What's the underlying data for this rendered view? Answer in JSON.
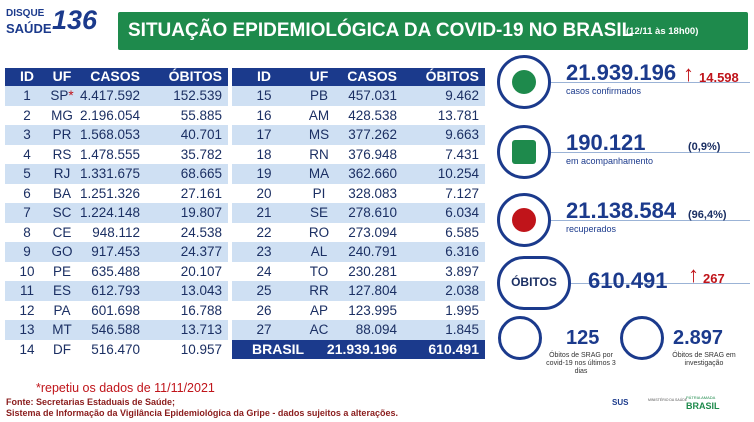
{
  "header": {
    "logo_line1": "DISQUE",
    "logo_line2": "SAÚDE",
    "logo_number": "136",
    "title": "SITUAÇÃO EPIDEMIOLÓGICA DA COVID-19 NO BRASIL",
    "timestamp": "(12/11 às 18h00)"
  },
  "table": {
    "columns": [
      "ID",
      "UF",
      "CASOS",
      "ÓBITOS"
    ],
    "rows": [
      [
        "1",
        "SP",
        "4.417.592",
        "152.539"
      ],
      [
        "2",
        "MG",
        "2.196.054",
        "55.885"
      ],
      [
        "3",
        "PR",
        "1.568.053",
        "40.701"
      ],
      [
        "4",
        "RS",
        "1.478.555",
        "35.782"
      ],
      [
        "5",
        "RJ",
        "1.331.675",
        "68.665"
      ],
      [
        "6",
        "BA",
        "1.251.326",
        "27.161"
      ],
      [
        "7",
        "SC",
        "1.224.148",
        "19.807"
      ],
      [
        "8",
        "CE",
        "948.112",
        "24.538"
      ],
      [
        "9",
        "GO",
        "917.453",
        "24.377"
      ],
      [
        "10",
        "PE",
        "635.488",
        "20.107"
      ],
      [
        "11",
        "ES",
        "612.793",
        "13.043"
      ],
      [
        "12",
        "PA",
        "601.698",
        "16.788"
      ],
      [
        "13",
        "MT",
        "546.588",
        "13.713"
      ],
      [
        "14",
        "DF",
        "516.470",
        "10.957"
      ],
      [
        "15",
        "PB",
        "457.031",
        "9.462"
      ],
      [
        "16",
        "AM",
        "428.538",
        "13.781"
      ],
      [
        "17",
        "MS",
        "377.262",
        "9.663"
      ],
      [
        "18",
        "RN",
        "376.948",
        "7.431"
      ],
      [
        "19",
        "MA",
        "362.660",
        "10.254"
      ],
      [
        "20",
        "PI",
        "328.083",
        "7.127"
      ],
      [
        "21",
        "SE",
        "278.610",
        "6.034"
      ],
      [
        "22",
        "RO",
        "273.094",
        "6.585"
      ],
      [
        "23",
        "AL",
        "240.791",
        "6.316"
      ],
      [
        "24",
        "TO",
        "230.281",
        "3.897"
      ],
      [
        "25",
        "RR",
        "127.804",
        "2.038"
      ],
      [
        "26",
        "AP",
        "123.995",
        "1.995"
      ],
      [
        "27",
        "AC",
        "88.094",
        "1.845"
      ]
    ],
    "note_mark": "*",
    "total": {
      "label": "BRASIL",
      "cases": "21.939.196",
      "deaths": "610.491"
    }
  },
  "summary": {
    "cards": [
      {
        "value": "21.939.196",
        "label": "casos confirmados",
        "delta": "14.598"
      },
      {
        "value": "190.121",
        "label": "em acompanhamento",
        "share": "(0,9%)"
      },
      {
        "value": "21.138.584",
        "label": "recuperados",
        "share": "(96,4%)"
      },
      {
        "title": "ÓBITOS",
        "value": "610.491",
        "delta": "267"
      }
    ],
    "srag": [
      {
        "value": "125",
        "label": "Óbitos de SRAG por covid-19 nos últimos 3 dias"
      },
      {
        "value": "2.897",
        "label": "Óbitos de SRAG em investigação"
      }
    ]
  },
  "footer": {
    "note": "*repetiu os dados de 11/11/2021",
    "source": "Fonte: Secretarias Estaduais de Saúde;",
    "system": "Sistema de Informação da Vigilância Epidemiológica da Gripe - dados sujeitos a alterações.",
    "logos": [
      "SUS",
      "MINISTÉRIO DA SAÚDE",
      "PÁTRIA AMADA",
      "BRASIL"
    ]
  }
}
